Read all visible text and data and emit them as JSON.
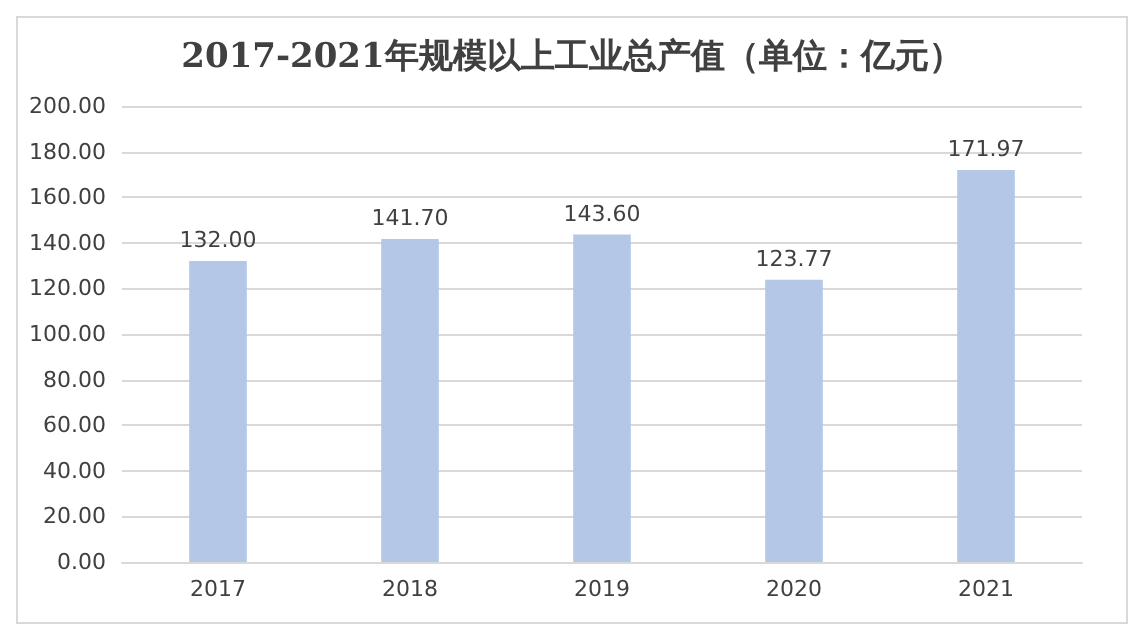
{
  "chart_data": {
    "type": "bar",
    "title": "2017-2021年规模以上工业总产值（单位：亿元）",
    "categories": [
      "2017",
      "2018",
      "2019",
      "2020",
      "2021"
    ],
    "values": [
      132.0,
      141.7,
      143.6,
      123.77,
      171.97
    ],
    "value_labels": [
      "132.00",
      "141.70",
      "143.60",
      "123.77",
      "171.97"
    ],
    "color": "#b4c7e7",
    "ylim": [
      0,
      200
    ],
    "yticks": [
      {
        "value": 0,
        "label": "0.00"
      },
      {
        "value": 20,
        "label": "20.00"
      },
      {
        "value": 40,
        "label": "40.00"
      },
      {
        "value": 60,
        "label": "60.00"
      },
      {
        "value": 80,
        "label": "80.00"
      },
      {
        "value": 100,
        "label": "100.00"
      },
      {
        "value": 120,
        "label": "120.00"
      },
      {
        "value": 140,
        "label": "140.00"
      },
      {
        "value": 160,
        "label": "160.00"
      },
      {
        "value": 180,
        "label": "180.00"
      },
      {
        "value": 200,
        "label": "200.00"
      }
    ],
    "grid": "y"
  }
}
